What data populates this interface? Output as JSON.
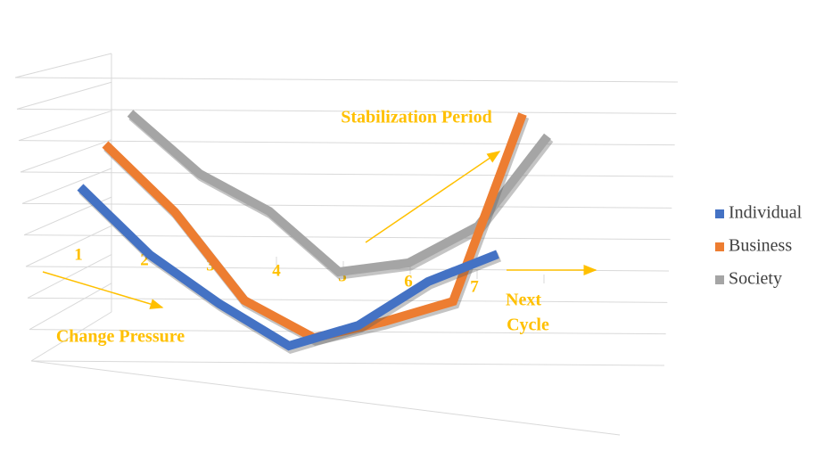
{
  "chart_data": {
    "type": "line3d",
    "categories": [
      "1",
      "2",
      "3",
      "4",
      "5",
      "6",
      "7"
    ],
    "series": [
      {
        "name": "Individual",
        "color": "#4472c4",
        "values": [
          70,
          42,
          22,
          5,
          15,
          35,
          48
        ]
      },
      {
        "name": "Business",
        "color": "#ed7d31",
        "values": [
          80,
          52,
          15,
          0,
          8,
          18,
          100
        ]
      },
      {
        "name": "Society",
        "color": "#a5a5a5",
        "values": [
          85,
          60,
          45,
          20,
          25,
          42,
          82
        ]
      }
    ],
    "ylim": [
      0,
      100
    ],
    "grid": true,
    "legend": "right",
    "annotations": [
      "Stabilization Period",
      "Change Pressure",
      "Next",
      "Cycle"
    ]
  }
}
